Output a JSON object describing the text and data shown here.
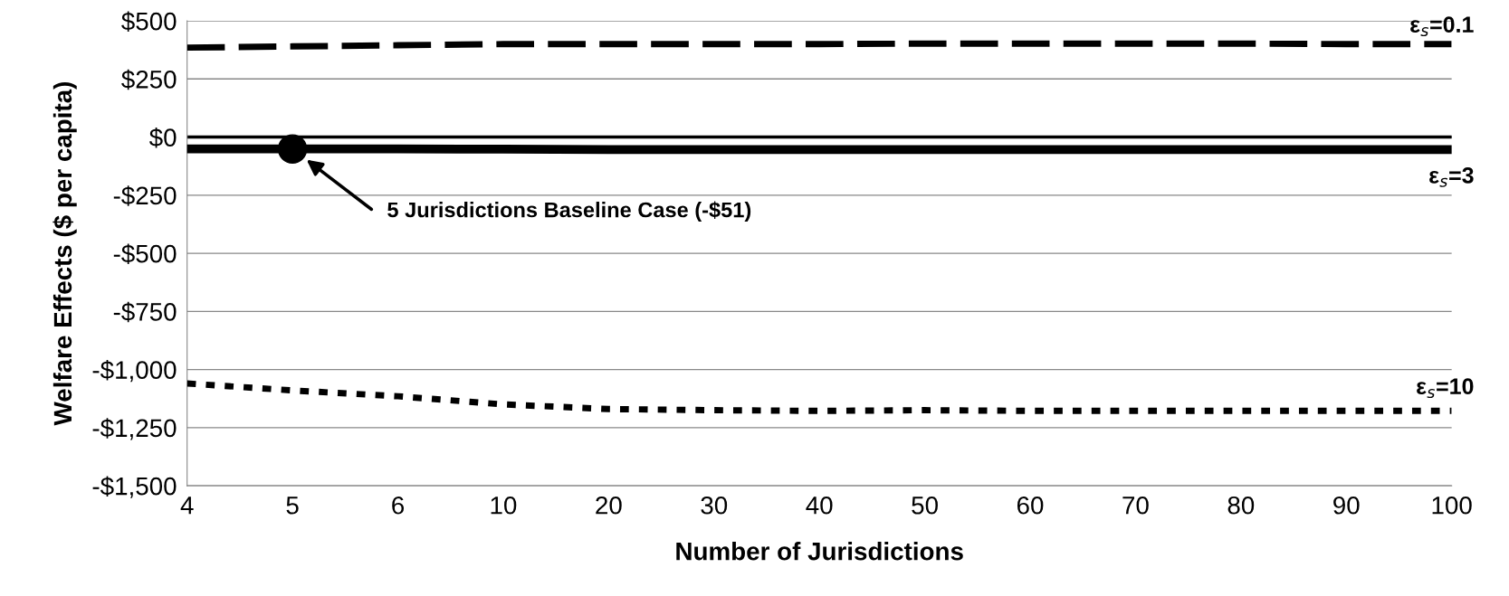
{
  "chart_data": {
    "type": "line",
    "xlabel": "Number of Jurisdictions",
    "ylabel": "Welfare Effects ($ per capita)",
    "categories": [
      "4",
      "5",
      "6",
      "10",
      "20",
      "30",
      "40",
      "50",
      "60",
      "70",
      "80",
      "90",
      "100"
    ],
    "series": [
      {
        "name": "ε$_{s}$=0.1",
        "color": "#000000",
        "line_style": "dashed",
        "values": [
          385,
          390,
          395,
          400,
          400,
          400,
          400,
          402,
          402,
          402,
          402,
          400,
          400
        ]
      },
      {
        "name": "ε$_{s}$=3",
        "color": "#000000",
        "line_style": "solid",
        "values": [
          -51,
          -51,
          -51,
          -52,
          -54,
          -54,
          -54,
          -54,
          -54,
          -54,
          -54,
          -54,
          -54
        ]
      },
      {
        "name": "ε$_{s}$=10",
        "color": "#000000",
        "line_style": "dotted",
        "values": [
          -1060,
          -1090,
          -1115,
          -1150,
          -1170,
          -1175,
          -1178,
          -1175,
          -1178,
          -1178,
          -1178,
          -1178,
          -1178
        ]
      },
      {
        "type": "scatter",
        "color": "#000000",
        "marker": "circle",
        "x": [
          "5"
        ],
        "values": [
          -51
        ]
      }
    ],
    "ref_lines": [
      {
        "axis": "y",
        "value": 0,
        "color": "#000000",
        "line_style": "solid"
      }
    ],
    "annotations": [
      "5 Jurisdictions Baseline Case (-$51)"
    ],
    "ylim": [
      -1500,
      500
    ],
    "yticks": [
      {
        "value": -1500,
        "label": "-$1,500"
      },
      {
        "value": -1250,
        "label": "-$1,250"
      },
      {
        "value": -1000,
        "label": "-$1,000"
      },
      {
        "value": -750,
        "label": "-$750"
      },
      {
        "value": -500,
        "label": "-$500"
      },
      {
        "value": -250,
        "label": "-$250"
      },
      {
        "value": 0,
        "label": "$0"
      },
      {
        "value": 250,
        "label": "$250"
      },
      {
        "value": 500,
        "label": "$500"
      }
    ],
    "grid": "y",
    "legend": false
  }
}
